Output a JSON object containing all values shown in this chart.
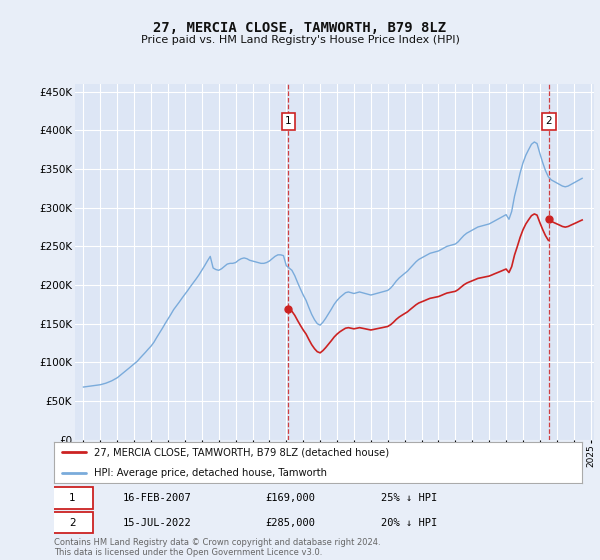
{
  "title": "27, MERCIA CLOSE, TAMWORTH, B79 8LZ",
  "subtitle": "Price paid vs. HM Land Registry's House Price Index (HPI)",
  "hpi_label": "HPI: Average price, detached house, Tamworth",
  "property_label": "27, MERCIA CLOSE, TAMWORTH, B79 8LZ (detached house)",
  "annotation1": {
    "label": "1",
    "date_str": "16-FEB-2007",
    "price": "£169,000",
    "pct": "25% ↓ HPI",
    "x_year": 2007.12
  },
  "annotation2": {
    "label": "2",
    "date_str": "15-JUL-2022",
    "price": "£285,000",
    "pct": "20% ↓ HPI",
    "x_year": 2022.54
  },
  "property_sale1_x": 2007.12,
  "property_sale1_y": 169000,
  "property_sale2_x": 2022.54,
  "property_sale2_y": 285000,
  "ylim": [
    0,
    460000
  ],
  "xlim": [
    1994.5,
    2025.2
  ],
  "yticks": [
    0,
    50000,
    100000,
    150000,
    200000,
    250000,
    300000,
    350000,
    400000,
    450000
  ],
  "background_color": "#e8eef8",
  "plot_bg_color": "#dde6f5",
  "grid_color": "#ffffff",
  "hpi_line_color": "#7aabdb",
  "property_line_color": "#cc2222",
  "vline_color": "#cc2222",
  "footnote": "Contains HM Land Registry data © Crown copyright and database right 2024.\nThis data is licensed under the Open Government Licence v3.0.",
  "hpi_data_years": [
    1995.0,
    1995.17,
    1995.33,
    1995.5,
    1995.67,
    1995.83,
    1996.0,
    1996.17,
    1996.33,
    1996.5,
    1996.67,
    1996.83,
    1997.0,
    1997.17,
    1997.33,
    1997.5,
    1997.67,
    1997.83,
    1998.0,
    1998.17,
    1998.33,
    1998.5,
    1998.67,
    1998.83,
    1999.0,
    1999.17,
    1999.33,
    1999.5,
    1999.67,
    1999.83,
    2000.0,
    2000.17,
    2000.33,
    2000.5,
    2000.67,
    2000.83,
    2001.0,
    2001.17,
    2001.33,
    2001.5,
    2001.67,
    2001.83,
    2002.0,
    2002.17,
    2002.33,
    2002.5,
    2002.67,
    2002.83,
    2003.0,
    2003.17,
    2003.33,
    2003.5,
    2003.67,
    2003.83,
    2004.0,
    2004.17,
    2004.33,
    2004.5,
    2004.67,
    2004.83,
    2005.0,
    2005.17,
    2005.33,
    2005.5,
    2005.67,
    2005.83,
    2006.0,
    2006.17,
    2006.33,
    2006.5,
    2006.67,
    2006.83,
    2007.0,
    2007.17,
    2007.33,
    2007.5,
    2007.67,
    2007.83,
    2008.0,
    2008.17,
    2008.33,
    2008.5,
    2008.67,
    2008.83,
    2009.0,
    2009.17,
    2009.33,
    2009.5,
    2009.67,
    2009.83,
    2010.0,
    2010.17,
    2010.33,
    2010.5,
    2010.67,
    2010.83,
    2011.0,
    2011.17,
    2011.33,
    2011.5,
    2011.67,
    2011.83,
    2012.0,
    2012.17,
    2012.33,
    2012.5,
    2012.67,
    2012.83,
    2013.0,
    2013.17,
    2013.33,
    2013.5,
    2013.67,
    2013.83,
    2014.0,
    2014.17,
    2014.33,
    2014.5,
    2014.67,
    2014.83,
    2015.0,
    2015.17,
    2015.33,
    2015.5,
    2015.67,
    2015.83,
    2016.0,
    2016.17,
    2016.33,
    2016.5,
    2016.67,
    2016.83,
    2017.0,
    2017.17,
    2017.33,
    2017.5,
    2017.67,
    2017.83,
    2018.0,
    2018.17,
    2018.33,
    2018.5,
    2018.67,
    2018.83,
    2019.0,
    2019.17,
    2019.33,
    2019.5,
    2019.67,
    2019.83,
    2020.0,
    2020.17,
    2020.33,
    2020.5,
    2020.67,
    2020.83,
    2021.0,
    2021.17,
    2021.33,
    2021.5,
    2021.67,
    2021.83,
    2022.0,
    2022.17,
    2022.33,
    2022.5,
    2022.67,
    2022.83,
    2023.0,
    2023.17,
    2023.33,
    2023.5,
    2023.67,
    2023.83,
    2024.0,
    2024.17,
    2024.33,
    2024.5
  ],
  "hpi_data_values": [
    68000,
    68500,
    69000,
    69500,
    70000,
    70500,
    71000,
    72000,
    73000,
    74500,
    76000,
    78000,
    80000,
    83000,
    86000,
    89000,
    92000,
    95000,
    98000,
    101000,
    105000,
    109000,
    113000,
    117000,
    121000,
    126000,
    132000,
    138000,
    144000,
    150000,
    156000,
    162000,
    168000,
    173000,
    178000,
    183000,
    188000,
    193000,
    198000,
    203000,
    208000,
    213000,
    219000,
    225000,
    231000,
    237000,
    222000,
    220000,
    219000,
    221000,
    224000,
    227000,
    228000,
    228000,
    229000,
    232000,
    234000,
    235000,
    234000,
    232000,
    231000,
    230000,
    229000,
    228000,
    228000,
    229000,
    231000,
    234000,
    237000,
    239000,
    239000,
    238000,
    225000,
    222000,
    219000,
    212000,
    203000,
    195000,
    187000,
    180000,
    171000,
    162000,
    155000,
    150000,
    148000,
    152000,
    157000,
    163000,
    169000,
    175000,
    180000,
    184000,
    187000,
    190000,
    191000,
    190000,
    189000,
    190000,
    191000,
    190000,
    189000,
    188000,
    187000,
    188000,
    189000,
    190000,
    191000,
    192000,
    193000,
    196000,
    200000,
    205000,
    209000,
    212000,
    215000,
    218000,
    222000,
    226000,
    230000,
    233000,
    235000,
    237000,
    239000,
    241000,
    242000,
    243000,
    244000,
    246000,
    248000,
    250000,
    251000,
    252000,
    253000,
    256000,
    260000,
    264000,
    267000,
    269000,
    271000,
    273000,
    275000,
    276000,
    277000,
    278000,
    279000,
    281000,
    283000,
    285000,
    287000,
    289000,
    291000,
    285000,
    295000,
    315000,
    330000,
    345000,
    358000,
    368000,
    375000,
    382000,
    385000,
    383000,
    370000,
    358000,
    348000,
    340000,
    336000,
    334000,
    332000,
    330000,
    328000,
    327000,
    328000,
    330000,
    332000,
    334000,
    336000,
    338000
  ]
}
